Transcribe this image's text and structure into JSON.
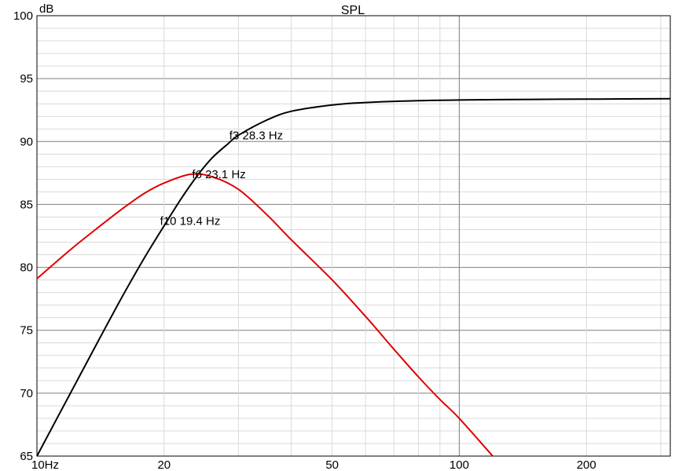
{
  "chart_data": {
    "type": "line",
    "title": "SPL",
    "ylabel": "dB",
    "xlabel": "",
    "x_scale": "log",
    "xlim": [
      10,
      316
    ],
    "ylim": [
      65,
      100
    ],
    "grid": true,
    "x_ticks": [
      {
        "value": 10,
        "label": "10Hz"
      },
      {
        "value": 20,
        "label": "20"
      },
      {
        "value": 50,
        "label": "50"
      },
      {
        "value": 100,
        "label": "100"
      },
      {
        "value": 200,
        "label": "200"
      }
    ],
    "y_ticks": [
      {
        "value": 100,
        "label": "100"
      },
      {
        "value": 95,
        "label": "95"
      },
      {
        "value": 90,
        "label": "90"
      },
      {
        "value": 85,
        "label": "85"
      },
      {
        "value": 80,
        "label": "80"
      },
      {
        "value": 75,
        "label": "75"
      },
      {
        "value": 70,
        "label": "70"
      },
      {
        "value": 65,
        "label": "65"
      }
    ],
    "series": [
      {
        "color": "#000000",
        "x": [
          10,
          12,
          14,
          16,
          18,
          20,
          22,
          24,
          26,
          28.3,
          30,
          35,
          40,
          50,
          60,
          80,
          100,
          150,
          200,
          316
        ],
        "y": [
          65.0,
          70.0,
          74.2,
          77.8,
          80.8,
          83.3,
          85.5,
          87.3,
          88.7,
          89.8,
          90.5,
          91.7,
          92.4,
          92.9,
          93.1,
          93.25,
          93.3,
          93.35,
          93.37,
          93.4
        ]
      },
      {
        "color": "#e00000",
        "x": [
          10,
          12,
          14,
          16,
          18,
          20,
          23.1,
          26,
          30,
          35,
          40,
          50,
          60,
          70,
          80,
          90,
          100,
          120
        ],
        "y": [
          79.1,
          81.4,
          83.2,
          84.7,
          85.9,
          86.7,
          87.4,
          87.2,
          86.2,
          84.2,
          82.2,
          79.0,
          76.1,
          73.5,
          71.3,
          69.5,
          68.0,
          65.0
        ]
      }
    ],
    "annotations": [
      {
        "text": "f3 28.3 Hz",
        "x": 28.3,
        "y": 90.5
      },
      {
        "text": "f6 23.1 Hz",
        "x": 23.1,
        "y": 87.4
      },
      {
        "text": "f10 19.4 Hz",
        "x": 19.4,
        "y": 83.7
      }
    ],
    "colors": {
      "grid_major": "#7f7f7f",
      "grid_minor": "#d9d9d9"
    }
  }
}
